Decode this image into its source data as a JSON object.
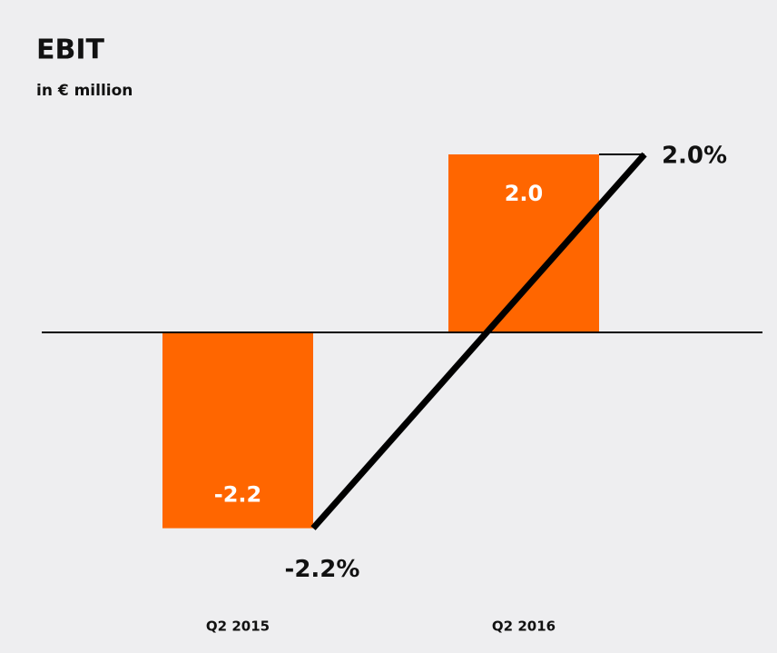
{
  "chart_data": {
    "type": "bar",
    "title": "EBIT",
    "subtitle": "in € million",
    "categories": [
      "Q2 2015",
      "Q2 2016"
    ],
    "series": [
      {
        "type": "bar",
        "color": "#ff6600",
        "values": [
          -2.2,
          2.0
        ],
        "value_labels": [
          "-2.2",
          "2.0"
        ]
      },
      {
        "type": "line",
        "color": "#000000",
        "values": [
          -2.2,
          2.0
        ],
        "value_labels": [
          "-2.2%",
          "2.0%"
        ]
      }
    ],
    "ylim": [
      -3,
      3
    ]
  }
}
